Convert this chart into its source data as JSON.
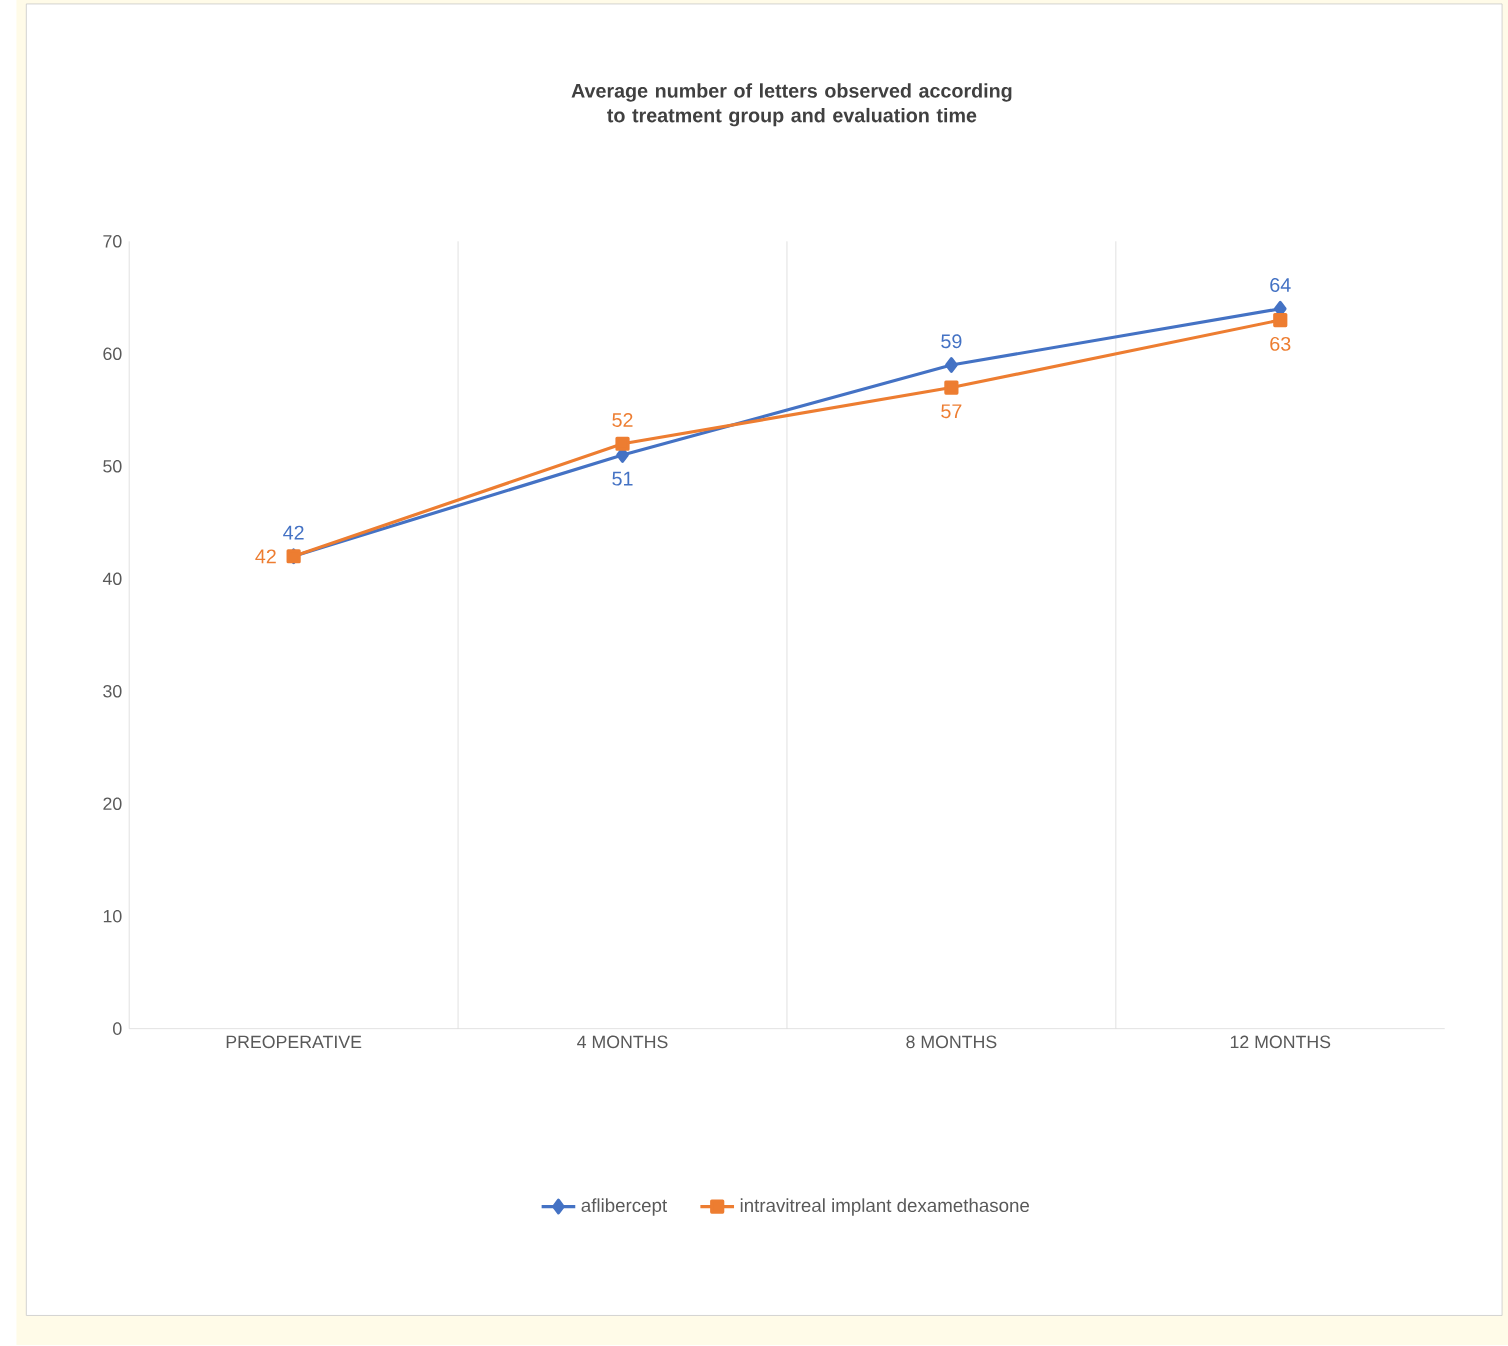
{
  "chart_data": {
    "type": "line",
    "title": "Average number of letters observed according to treatment group and evaluation time",
    "categories": [
      "PREOPERATIVE",
      "4 MONTHS",
      "8 MONTHS",
      "12 MONTHS"
    ],
    "series": [
      {
        "name": "aflibercept",
        "color": "#4472c4",
        "marker": "diamond",
        "values": [
          42,
          51,
          59,
          64
        ]
      },
      {
        "name": "intravitreal implant dexamethasone",
        "color": "#ed7d31",
        "marker": "square",
        "values": [
          42,
          52,
          57,
          63
        ]
      }
    ],
    "ylim": [
      0,
      70
    ],
    "yticks": [
      0,
      10,
      20,
      30,
      40,
      50,
      60,
      70
    ],
    "grid": "x",
    "legend": "bottom",
    "data_labels": true
  }
}
